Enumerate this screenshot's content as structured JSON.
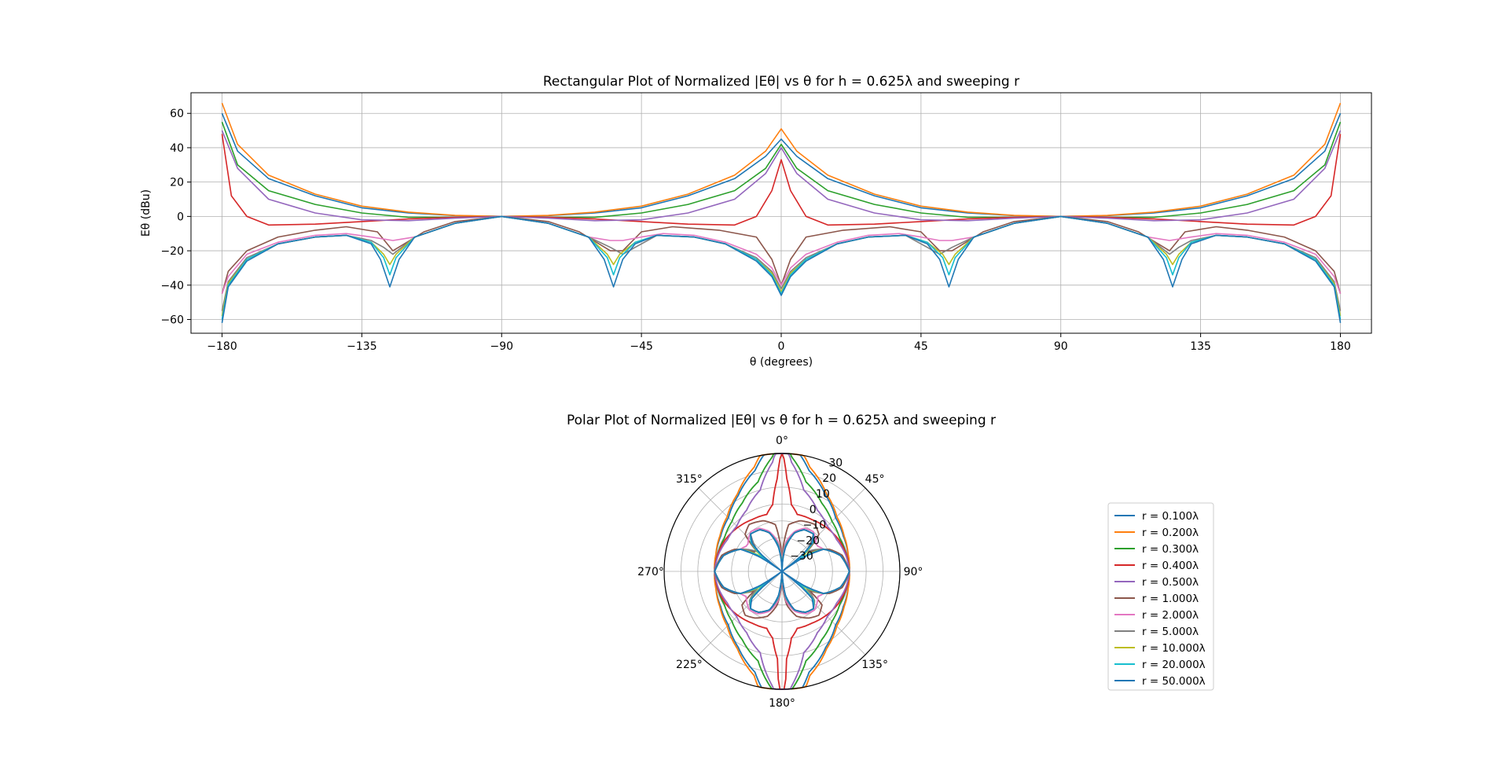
{
  "chart_data": [
    {
      "type": "line",
      "title": "Rectangular Plot of Normalized |Eθ| vs θ for h = 0.625λ and sweeping r",
      "xlabel": "θ (degrees)",
      "ylabel": "Eθ (dBu)",
      "xlim": [
        -190,
        190
      ],
      "ylim": [
        -68,
        72
      ],
      "xticks": [
        -180,
        -135,
        -90,
        -45,
        0,
        45,
        90,
        135,
        180
      ],
      "yticks": [
        -60,
        -40,
        -20,
        0,
        20,
        40,
        60
      ],
      "xtick_labels": [
        "−180",
        "−135",
        "−90",
        "−45",
        "0",
        "45",
        "90",
        "135",
        "180"
      ],
      "ytick_labels": [
        "−60",
        "−40",
        "−20",
        "0",
        "20",
        "40",
        "60"
      ],
      "grid": true,
      "series": [
        {
          "name": "r = 0.100λ",
          "color": "#1f77b4",
          "x": [
            -180,
            -175,
            -165,
            -150,
            -135,
            -120,
            -105,
            -90,
            -75,
            -60,
            -45,
            -30,
            -15,
            -5,
            0
          ],
          "y": [
            60,
            38,
            22,
            12,
            5,
            2,
            0.5,
            0,
            0.5,
            2,
            5,
            12,
            22,
            35,
            45
          ]
        },
        {
          "name": "r = 0.200λ",
          "color": "#ff7f0e",
          "x": [
            -180,
            -175,
            -165,
            -150,
            -135,
            -120,
            -105,
            -90,
            -75,
            -60,
            -45,
            -30,
            -15,
            -5,
            0
          ],
          "y": [
            66,
            42,
            24,
            13,
            6,
            2.5,
            0.6,
            0,
            0.6,
            2.5,
            6,
            13,
            24,
            38,
            51
          ]
        },
        {
          "name": "r = 0.300λ",
          "color": "#2ca02c",
          "x": [
            -180,
            -175,
            -165,
            -150,
            -135,
            -120,
            -105,
            -90,
            -75,
            -60,
            -45,
            -30,
            -15,
            -5,
            0
          ],
          "y": [
            55,
            30,
            15,
            7,
            2,
            -0.5,
            -0.5,
            0,
            -0.5,
            -0.5,
            2,
            7,
            15,
            28,
            42
          ]
        },
        {
          "name": "r = 0.400λ",
          "color": "#d62728",
          "x": [
            -180,
            -177,
            -172,
            -165,
            -150,
            -135,
            -120,
            -105,
            -90,
            -75,
            -60,
            -45,
            -30,
            -15,
            -8,
            -3,
            0
          ],
          "y": [
            48,
            12,
            0,
            -5,
            -4.5,
            -3,
            -1.5,
            -0.5,
            0,
            -0.5,
            -1.5,
            -3,
            -4.5,
            -5,
            0,
            15,
            33
          ]
        },
        {
          "name": "r = 0.500λ",
          "color": "#9467bd",
          "x": [
            -180,
            -175,
            -165,
            -150,
            -135,
            -120,
            -105,
            -90,
            -75,
            -60,
            -45,
            -30,
            -15,
            -5,
            0
          ],
          "y": [
            50,
            28,
            10,
            2,
            -2,
            -2.5,
            -1,
            0,
            -1,
            -2.5,
            -2,
            2,
            10,
            25,
            40
          ]
        },
        {
          "name": "r = 1.000λ",
          "color": "#8c564b",
          "x": [
            -180,
            -178,
            -172,
            -162,
            -150,
            -140,
            -130,
            -125,
            -115,
            -105,
            -90,
            -75,
            -65,
            -55,
            -51,
            -45,
            -35,
            -20,
            -8,
            -3,
            0
          ],
          "y": [
            -45,
            -32,
            -20,
            -12,
            -8,
            -6,
            -9,
            -20,
            -9,
            -3,
            0,
            -3,
            -9,
            -20,
            -20,
            -9,
            -6,
            -8,
            -12,
            -25,
            -40
          ]
        },
        {
          "name": "r = 2.000λ",
          "color": "#e377c2",
          "x": [
            -180,
            -178,
            -172,
            -162,
            -150,
            -140,
            -132,
            -125,
            -118,
            -105,
            -90,
            -75,
            -62,
            -55,
            -51,
            -45,
            -38,
            -28,
            -18,
            -8,
            -3,
            0
          ],
          "y": [
            -45,
            -35,
            -22,
            -15,
            -11,
            -10,
            -12,
            -14,
            -12,
            -4,
            0,
            -4,
            -12,
            -14,
            -14,
            -12,
            -10,
            -11,
            -15,
            -22,
            -30,
            -40
          ]
        },
        {
          "name": "r = 5.000λ",
          "color": "#7f7f7f",
          "x": [
            -180,
            -178,
            -172,
            -162,
            -150,
            -140,
            -132,
            -128,
            -125,
            -118,
            -105,
            -90,
            -75,
            -62,
            -55,
            -51,
            -47,
            -40,
            -28,
            -18,
            -8,
            -3,
            0
          ],
          "y": [
            -55,
            -38,
            -24,
            -16,
            -12,
            -11,
            -14,
            -18,
            -22,
            -12,
            -4,
            0,
            -4,
            -12,
            -18,
            -22,
            -18,
            -11,
            -12,
            -16,
            -24,
            -32,
            -42
          ]
        },
        {
          "name": "r = 10.000λ",
          "color": "#bcbd22",
          "x": [
            -180,
            -178,
            -172,
            -162,
            -150,
            -140,
            -132,
            -128,
            -126,
            -124,
            -118,
            -105,
            -90,
            -75,
            -62,
            -56,
            -54,
            -52,
            -47,
            -40,
            -28,
            -18,
            -8,
            -3,
            0
          ],
          "y": [
            -58,
            -39,
            -25,
            -16,
            -12,
            -11,
            -15,
            -22,
            -28,
            -22,
            -12,
            -4,
            0,
            -4,
            -12,
            -22,
            -28,
            -22,
            -15,
            -11,
            -12,
            -16,
            -25,
            -33,
            -44
          ]
        },
        {
          "name": "r = 20.000λ",
          "color": "#17becf",
          "x": [
            -180,
            -178,
            -172,
            -162,
            -150,
            -140,
            -132,
            -128,
            -126,
            -124,
            -118,
            -105,
            -90,
            -75,
            -62,
            -56,
            -54,
            -52,
            -47,
            -40,
            -28,
            -18,
            -8,
            -3,
            0
          ],
          "y": [
            -60,
            -40,
            -25,
            -16,
            -12,
            -11,
            -15,
            -24,
            -34,
            -24,
            -12,
            -4,
            0,
            -4,
            -12,
            -24,
            -34,
            -24,
            -15,
            -11,
            -12,
            -16,
            -25,
            -34,
            -45
          ]
        },
        {
          "name": "r = 50.000λ",
          "color": "#1f77b4",
          "x": [
            -180,
            -178,
            -172,
            -162,
            -150,
            -140,
            -132,
            -129,
            -126,
            -123,
            -118,
            -105,
            -90,
            -75,
            -62,
            -57,
            -54,
            -51,
            -47,
            -40,
            -28,
            -18,
            -8,
            -3,
            0
          ],
          "y": [
            -62,
            -41,
            -26,
            -16,
            -12,
            -11,
            -16,
            -25,
            -41,
            -25,
            -12,
            -4,
            0,
            -4,
            -12,
            -25,
            -41,
            -25,
            -16,
            -11,
            -12,
            -16,
            -26,
            -35,
            -46
          ]
        }
      ]
    },
    {
      "type": "polar",
      "title": "Polar Plot of Normalized |Eθ| vs θ for h = 0.625λ and sweeping r",
      "theta_direction": "clockwise",
      "theta_zero": "top",
      "theta_tick_labels": [
        "0°",
        "45°",
        "90°",
        "135°",
        "180°",
        "225°",
        "270°",
        "315°"
      ],
      "r_ticks": [
        -30,
        -20,
        -10,
        0,
        10,
        20,
        30
      ],
      "r_tick_labels": [
        "−30",
        "−20",
        "−10",
        "0",
        "10",
        "20",
        "30"
      ],
      "rlim": [
        -40,
        30
      ],
      "grid": true,
      "legend_position": "right",
      "note": "same 11 series as rectangular plot, mirrored about 0°"
    }
  ]
}
